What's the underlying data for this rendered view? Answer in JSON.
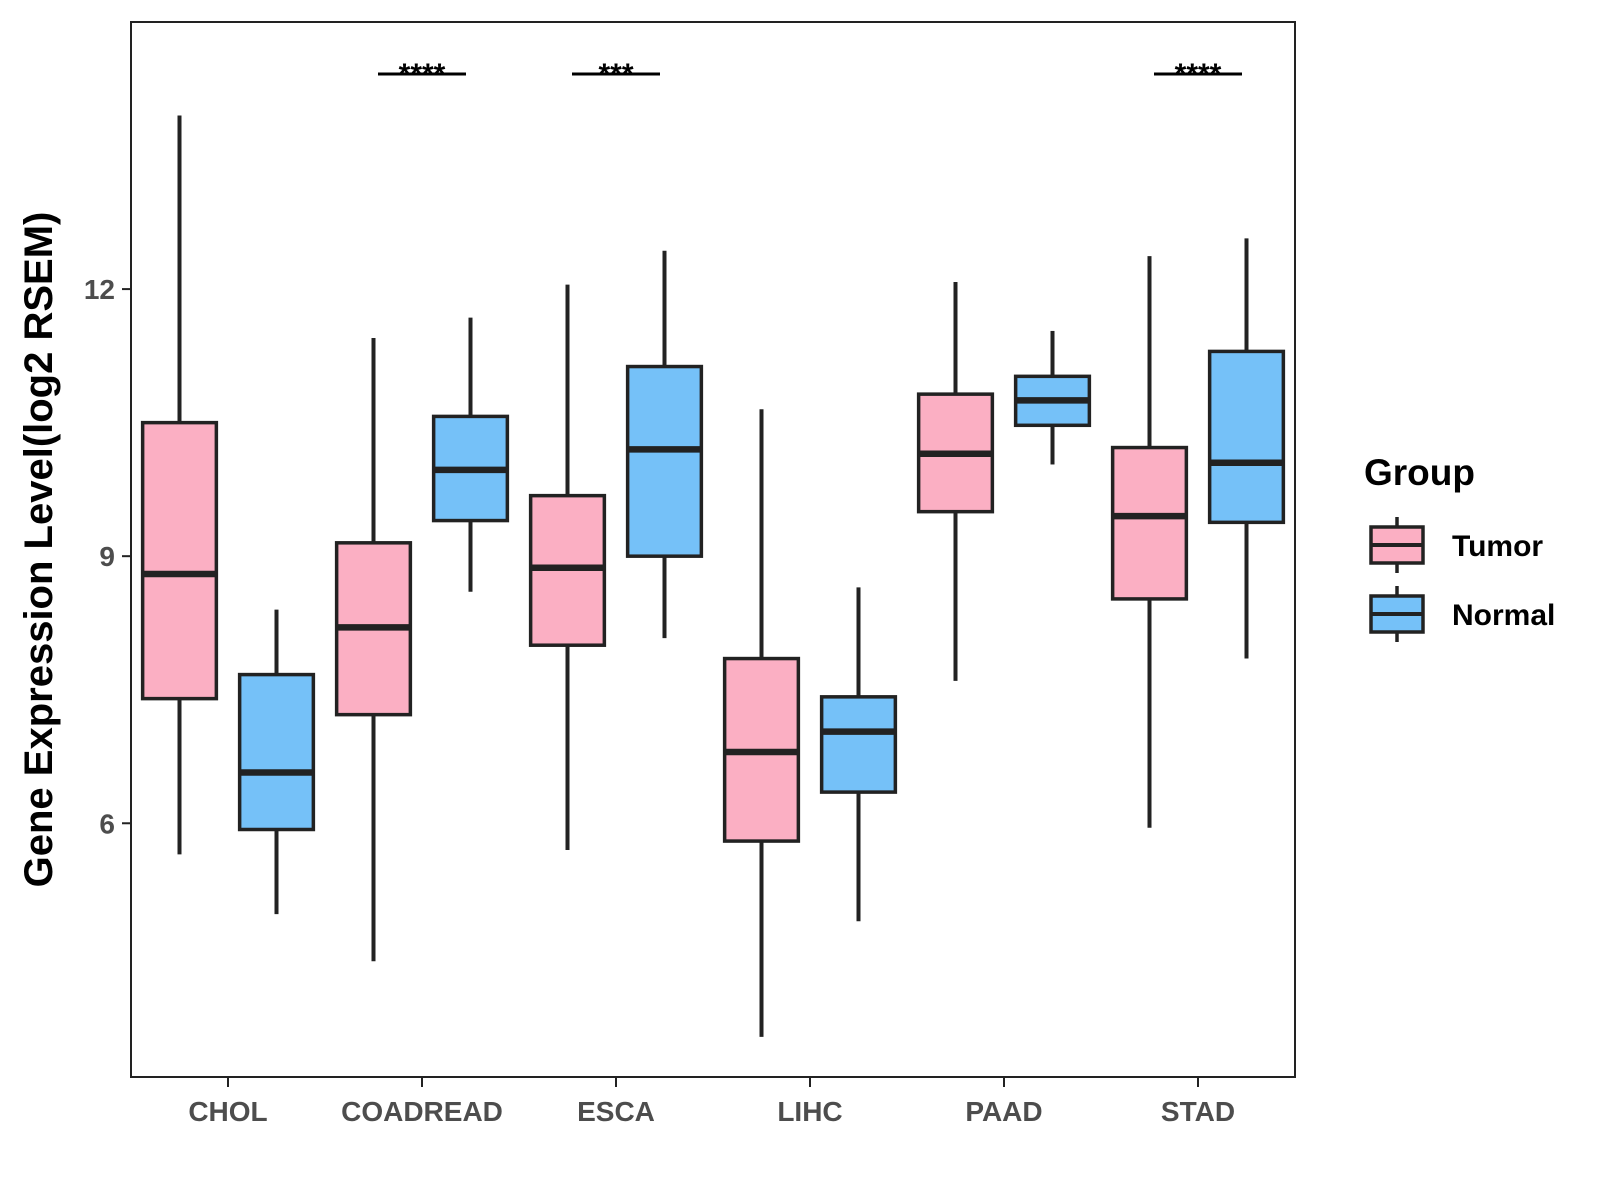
{
  "chart_data": {
    "type": "boxplot",
    "title": "",
    "xlabel": "",
    "ylabel": "Gene Expression Level(log2 RSEM)",
    "ylim": [
      3.15,
      15.0
    ],
    "yticks": [
      6,
      9,
      12
    ],
    "ytick_labels": [
      "6",
      "9",
      "12"
    ],
    "grid": false,
    "categories": [
      "CHOL",
      "COADREAD",
      "ESCA",
      "LIHC",
      "PAAD",
      "STAD"
    ],
    "legend": {
      "title": "Group",
      "position": "right",
      "entries": [
        {
          "name": "Tumor",
          "color": "#FBAFC3"
        },
        {
          "name": "Normal",
          "color": "#75C1F8"
        }
      ]
    },
    "series": [
      {
        "name": "Tumor",
        "color": "#FBAFC3",
        "boxes": [
          {
            "min": 5.65,
            "q1": 7.4,
            "median": 8.8,
            "q3": 10.5,
            "max": 13.95
          },
          {
            "min": 4.45,
            "q1": 7.22,
            "median": 8.2,
            "q3": 9.15,
            "max": 11.45
          },
          {
            "min": 5.7,
            "q1": 8.0,
            "median": 8.87,
            "q3": 9.68,
            "max": 12.05
          },
          {
            "min": 3.6,
            "q1": 5.8,
            "median": 6.8,
            "q3": 7.85,
            "max": 10.65
          },
          {
            "min": 7.6,
            "q1": 9.5,
            "median": 10.15,
            "q3": 10.82,
            "max": 12.08
          },
          {
            "min": 5.95,
            "q1": 8.52,
            "median": 9.45,
            "q3": 10.22,
            "max": 12.37
          }
        ]
      },
      {
        "name": "Normal",
        "color": "#75C1F8",
        "boxes": [
          {
            "min": 4.98,
            "q1": 5.93,
            "median": 6.57,
            "q3": 7.67,
            "max": 8.4
          },
          {
            "min": 8.6,
            "q1": 9.4,
            "median": 9.97,
            "q3": 10.57,
            "max": 11.68
          },
          {
            "min": 8.08,
            "q1": 9.0,
            "median": 10.2,
            "q3": 11.13,
            "max": 12.43
          },
          {
            "min": 4.9,
            "q1": 6.35,
            "median": 7.03,
            "q3": 7.42,
            "max": 8.65
          },
          {
            "min": 10.03,
            "q1": 10.47,
            "median": 10.75,
            "q3": 11.02,
            "max": 11.53
          },
          {
            "min": 7.85,
            "q1": 9.38,
            "median": 10.05,
            "q3": 11.3,
            "max": 12.57
          }
        ]
      }
    ],
    "annotations": [
      {
        "category": "COADREAD",
        "label": "****"
      },
      {
        "category": "ESCA",
        "label": "***"
      },
      {
        "category": "STAD",
        "label": "****"
      }
    ]
  }
}
